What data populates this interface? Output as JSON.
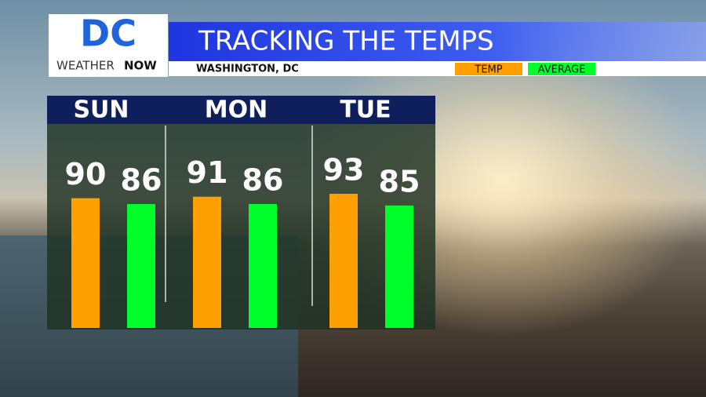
{
  "logo": {
    "mark": "DC",
    "word1": "WEATHER",
    "word2": "NOW"
  },
  "chart_data": {
    "type": "bar",
    "title": "TRACKING THE TEMPS",
    "subtitle": "WASHINGTON, DC",
    "categories": [
      "SUN",
      "MON",
      "TUE"
    ],
    "series": [
      {
        "name": "TEMP",
        "color": "#ff9f00",
        "values": [
          90,
          91,
          93
        ]
      },
      {
        "name": "AVERAGE",
        "color": "#00ff2a",
        "values": [
          86,
          86,
          85
        ]
      }
    ]
  }
}
